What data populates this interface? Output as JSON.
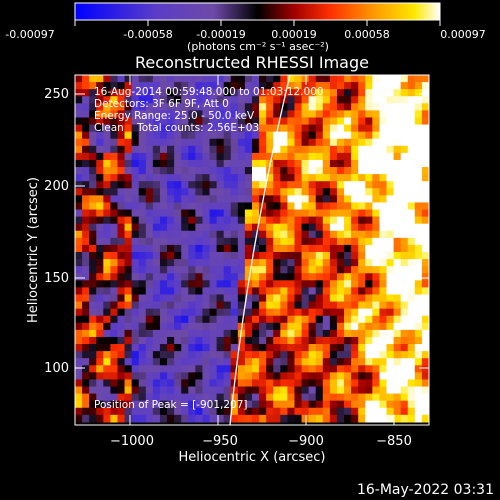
{
  "colorbar": {
    "ticks": [
      "-0.00097",
      "-0.00058",
      "-0.00019",
      "0.00019",
      "0.00058",
      "0.00097"
    ],
    "units": "(photons cm⁻² s⁻¹ asec⁻²)"
  },
  "title": "Reconstructed RHESSI Image",
  "info": {
    "line1": "16-Aug-2014 00:59:48.000 to 01:03:12.000",
    "line2": "Detectors: 3F 6F 9F, Att 0",
    "line3": "Energy Range: 25.0 - 50.0 keV",
    "line4": "Clean    Total counts: 2.56E+03"
  },
  "peak": "Position of Peak = [-901,207]",
  "axes": {
    "xlabel": "Heliocentric X (arcsec)",
    "ylabel": "Heliocentric Y (arcsec)",
    "xticks": [
      "−1000",
      "−950",
      "−900",
      "−850"
    ],
    "yticks": [
      "100",
      "150",
      "200",
      "250"
    ]
  },
  "footer": "16-May-2022 03:31",
  "colors": {
    "background": "#000000",
    "colormap": [
      "#0000ff",
      "#5a3cc8",
      "#6e4aa8",
      "#000000",
      "#a00000",
      "#ff3000",
      "#ff9a00",
      "#ffe800",
      "#ffffff"
    ]
  }
}
